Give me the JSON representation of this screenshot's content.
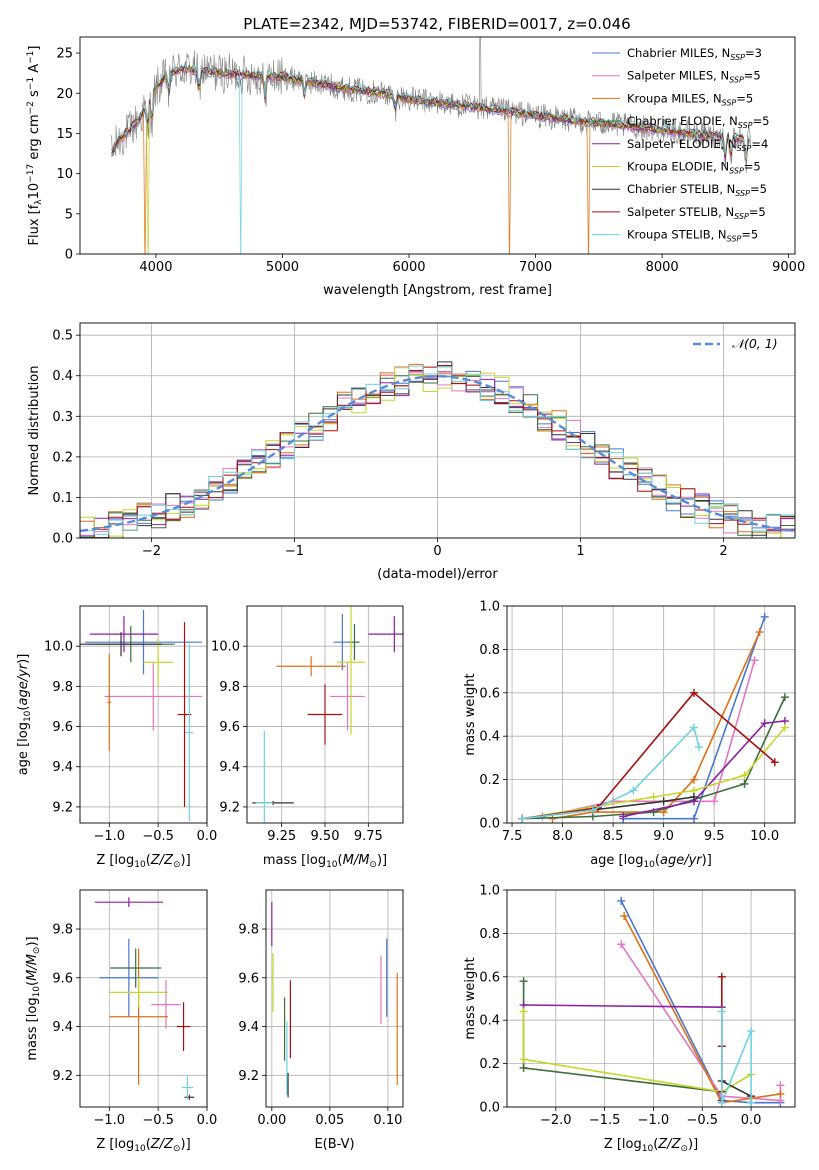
{
  "figure_title": "PLATE=2342, MJD=53742, FIBERID=0017, z=0.046",
  "colors": {
    "Chabrier MILES": "#4878cf",
    "Salpeter MILES": "#e377c2",
    "Kroupa MILES": "#dd7117",
    "Chabrier ELODIE": "#3b6e3b",
    "Salpeter ELODIE": "#8e1fa4",
    "Kroupa ELODIE": "#c7d62a",
    "Chabrier STELIB": "#333333",
    "Salpeter STELIB": "#a50f0f",
    "Kroupa STELIB": "#6fd2de",
    "data": "#7f7f7f"
  },
  "chart_data": [
    {
      "id": "spectrum",
      "type": "line",
      "title": "PLATE=2342, MJD=53742, FIBERID=0017, z=0.046",
      "xlabel": "wavelength [Angstrom, rest frame]",
      "ylabel": "Flux [f_λ 10^-17 erg cm^-2 s^-1 A^-1]",
      "xlim": [
        3400,
        9050
      ],
      "ylim": [
        0,
        27
      ],
      "xticks": [
        4000,
        5000,
        6000,
        7000,
        8000,
        9000
      ],
      "yticks": [
        0,
        5,
        10,
        15,
        20,
        25
      ],
      "legend_position": "top-right",
      "legend": [
        {
          "name": "Chabrier MILES",
          "nssp": "3"
        },
        {
          "name": "Salpeter MILES",
          "nssp": "5"
        },
        {
          "name": "Kroupa MILES",
          "nssp": "5"
        },
        {
          "name": "Chabrier ELODIE",
          "nssp": "5"
        },
        {
          "name": "Salpeter ELODIE",
          "nssp": "4"
        },
        {
          "name": "Kroupa ELODIE",
          "nssp": "5"
        },
        {
          "name": "Chabrier STELIB",
          "nssp": "5"
        },
        {
          "name": "Salpeter STELIB",
          "nssp": "5"
        },
        {
          "name": "Kroupa STELIB",
          "nssp": "5"
        }
      ],
      "data_envelope": {
        "x": [
          3650,
          3700,
          3800,
          3900,
          4000,
          4100,
          4200,
          4400,
          4600,
          4800,
          5000,
          5200,
          5500,
          5800,
          6000,
          6300,
          6600,
          6900,
          7200,
          7500,
          7800,
          8100,
          8400,
          8700
        ],
        "y": [
          12.5,
          14.0,
          15.5,
          17.5,
          20.5,
          22.5,
          23.0,
          22.7,
          22.4,
          22.2,
          22.0,
          21.5,
          20.6,
          20.0,
          19.3,
          18.7,
          18.1,
          17.5,
          16.8,
          16.3,
          15.8,
          15.2,
          14.7,
          14.2
        ]
      }
    },
    {
      "id": "residuals",
      "type": "histogram",
      "xlabel": "(data-model)/error",
      "ylabel": "Normed distribution",
      "xlim": [
        -2.5,
        2.5
      ],
      "ylim": [
        0,
        0.53
      ],
      "xticks": [
        -2,
        -1,
        0,
        1,
        2
      ],
      "yticks": [
        0.0,
        0.1,
        0.2,
        0.3,
        0.4,
        0.5
      ],
      "legend_position": "top-right",
      "legend": [
        "𝒩(0, 1)"
      ],
      "bins": {
        "start": -2.5,
        "width": 0.1,
        "count": 50
      },
      "reference": "standard normal pdf"
    },
    {
      "id": "age-vs-Z",
      "type": "errorbar",
      "xlabel": "Z [log10(Z/Z⊙)]",
      "ylabel": "age  [log10(age/yr)]",
      "xlim": [
        -1.3,
        0.0
      ],
      "ylim": [
        9.12,
        10.2
      ],
      "xticks": [
        -1.0,
        -0.5,
        0.0
      ],
      "yticks": [
        9.2,
        9.4,
        9.6,
        9.8,
        10.0
      ],
      "points": [
        {
          "model": "Chabrier MILES",
          "x": -0.65,
          "xerr": 0.6,
          "y": 10.02,
          "yerr": 0.16
        },
        {
          "model": "Salpeter MILES",
          "x": -0.55,
          "xerr": 0.5,
          "y": 9.75,
          "yerr": 0.17
        },
        {
          "model": "Kroupa MILES",
          "x": -1.0,
          "xerr": 0.02,
          "y": 9.72,
          "yerr": 0.24
        },
        {
          "model": "Chabrier ELODIE",
          "x": -0.78,
          "xerr": 0.45,
          "y": 10.01,
          "yerr": 0.09
        },
        {
          "model": "Salpeter ELODIE",
          "x": -0.85,
          "xerr": 0.35,
          "y": 10.06,
          "yerr": 0.09
        },
        {
          "model": "Kroupa ELODIE",
          "x": -0.5,
          "xerr": 0.15,
          "y": 9.92,
          "yerr": 0.12
        },
        {
          "model": "Chabrier STELIB",
          "x": -0.88,
          "xerr": 0.42,
          "y": 10.01,
          "yerr": 0.06
        },
        {
          "model": "Salpeter STELIB",
          "x": -0.23,
          "xerr": 0.07,
          "y": 9.66,
          "yerr": 0.46
        },
        {
          "model": "Kroupa STELIB",
          "x": -0.18,
          "xerr": 0.04,
          "y": 9.57,
          "yerr": 0.44
        }
      ]
    },
    {
      "id": "age-vs-mass",
      "type": "errorbar",
      "xlabel": "mass [log10(M/M⊙)]",
      "ylabel": "",
      "xlim": [
        9.05,
        9.95
      ],
      "ylim": [
        9.12,
        10.2
      ],
      "xticks": [
        9.25,
        9.5,
        9.75
      ],
      "yticks": [
        9.2,
        9.4,
        9.6,
        9.8,
        10.0
      ],
      "points": [
        {
          "model": "Chabrier MILES",
          "x": 9.6,
          "xerr": 0.05,
          "y": 10.02,
          "yerr": 0.14
        },
        {
          "model": "Salpeter MILES",
          "x": 9.63,
          "xerr": 0.1,
          "y": 9.75,
          "yerr": 0.17
        },
        {
          "model": "Kroupa MILES",
          "x": 9.42,
          "xerr": 0.2,
          "y": 9.9,
          "yerr": 0.05
        },
        {
          "model": "Chabrier ELODIE",
          "x": 9.67,
          "xerr": 0.03,
          "y": 10.02,
          "yerr": 0.09
        },
        {
          "model": "Salpeter ELODIE",
          "x": 9.9,
          "xerr": 0.15,
          "y": 10.06,
          "yerr": 0.09
        },
        {
          "model": "Kroupa ELODIE",
          "x": 9.65,
          "xerr": 0.08,
          "y": 9.92,
          "yerr": 0.36
        },
        {
          "model": "Chabrier STELIB",
          "x": 9.2,
          "xerr": 0.12,
          "y": 9.22,
          "yerr": 0.0
        },
        {
          "model": "Salpeter STELIB",
          "x": 9.5,
          "xerr": 0.1,
          "y": 9.66,
          "yerr": 0.15
        },
        {
          "model": "Kroupa STELIB",
          "x": 9.15,
          "xerr": 0.05,
          "y": 9.22,
          "yerr": 0.36
        }
      ]
    },
    {
      "id": "massweight-vs-age",
      "type": "line",
      "xlabel": "age  [log10(age/yr)]",
      "ylabel": "mass weight",
      "xlim": [
        7.45,
        10.3
      ],
      "ylim": [
        0,
        1.0
      ],
      "xticks": [
        7.5,
        8.0,
        8.5,
        9.0,
        9.5,
        10.0
      ],
      "yticks": [
        0.0,
        0.2,
        0.4,
        0.6,
        0.8,
        1.0
      ],
      "series": [
        {
          "model": "Chabrier MILES",
          "x": [
            8.6,
            9.3,
            10.0
          ],
          "y": [
            0.02,
            0.02,
            0.95
          ]
        },
        {
          "model": "Salpeter MILES",
          "x": [
            7.8,
            8.5,
            9.5,
            9.9
          ],
          "y": [
            0.03,
            0.1,
            0.1,
            0.75
          ]
        },
        {
          "model": "Kroupa MILES",
          "x": [
            7.9,
            8.3,
            9.0,
            9.3,
            9.95
          ],
          "y": [
            0.02,
            0.05,
            0.05,
            0.2,
            0.88
          ]
        },
        {
          "model": "Chabrier ELODIE",
          "x": [
            7.6,
            8.3,
            8.9,
            9.8,
            10.2
          ],
          "y": [
            0.02,
            0.03,
            0.05,
            0.18,
            0.58
          ]
        },
        {
          "model": "Salpeter ELODIE",
          "x": [
            8.6,
            9.3,
            10.0,
            10.2
          ],
          "y": [
            0.03,
            0.1,
            0.46,
            0.47
          ]
        },
        {
          "model": "Kroupa ELODIE",
          "x": [
            7.6,
            8.9,
            9.3,
            9.8,
            10.2
          ],
          "y": [
            0.02,
            0.12,
            0.15,
            0.22,
            0.44
          ]
        },
        {
          "model": "Chabrier STELIB",
          "x": [
            7.6,
            8.3,
            9.0,
            9.3
          ],
          "y": [
            0.02,
            0.06,
            0.1,
            0.12
          ]
        },
        {
          "model": "Salpeter STELIB",
          "x": [
            7.6,
            8.35,
            9.3,
            10.1
          ],
          "y": [
            0.02,
            0.07,
            0.6,
            0.28
          ]
        },
        {
          "model": "Kroupa STELIB",
          "x": [
            7.6,
            8.3,
            8.7,
            9.3,
            9.35
          ],
          "y": [
            0.02,
            0.06,
            0.15,
            0.44,
            0.35
          ]
        }
      ]
    },
    {
      "id": "mass-vs-Z",
      "type": "errorbar",
      "xlabel": "Z [log10(Z/Z⊙)]",
      "ylabel": "mass [log10(M/M⊙)]",
      "xlim": [
        -1.3,
        0.0
      ],
      "ylim": [
        9.07,
        9.96
      ],
      "xticks": [
        -1.0,
        -0.5,
        0.0
      ],
      "yticks": [
        9.2,
        9.4,
        9.6,
        9.8
      ],
      "points": [
        {
          "model": "Chabrier MILES",
          "x": -0.8,
          "xerr": 0.3,
          "y": 9.6,
          "yerr": 0.16
        },
        {
          "model": "Salpeter MILES",
          "x": -0.42,
          "xerr": 0.15,
          "y": 9.49,
          "yerr": 0.1
        },
        {
          "model": "Kroupa MILES",
          "x": -0.7,
          "xerr": 0.3,
          "y": 9.44,
          "yerr": 0.28
        },
        {
          "model": "Chabrier ELODIE",
          "x": -0.73,
          "xerr": 0.26,
          "y": 9.64,
          "yerr": 0.08
        },
        {
          "model": "Salpeter ELODIE",
          "x": -0.8,
          "xerr": 0.35,
          "y": 9.91,
          "yerr": 0.02
        },
        {
          "model": "Kroupa ELODIE",
          "x": -0.7,
          "xerr": 0.3,
          "y": 9.54,
          "yerr": 0.06
        },
        {
          "model": "Chabrier STELIB",
          "x": -0.18,
          "xerr": 0.05,
          "y": 9.11,
          "yerr": 0.0
        },
        {
          "model": "Salpeter STELIB",
          "x": -0.24,
          "xerr": 0.07,
          "y": 9.4,
          "yerr": 0.1
        },
        {
          "model": "Kroupa STELIB",
          "x": -0.2,
          "xerr": 0.06,
          "y": 9.15,
          "yerr": 0.05
        }
      ]
    },
    {
      "id": "mass-vs-ebv",
      "type": "errorbar",
      "xlabel": "E(B-V)",
      "ylabel": "",
      "xlim": [
        -0.005,
        0.113
      ],
      "ylim": [
        9.07,
        9.96
      ],
      "xticks": [
        0.0,
        0.05,
        0.1
      ],
      "yticks": [
        9.2,
        9.4,
        9.6,
        9.8
      ],
      "points": [
        {
          "model": "Chabrier MILES",
          "x": 0.099,
          "y": 9.6,
          "yerr": 0.16
        },
        {
          "model": "Salpeter MILES",
          "x": 0.094,
          "y": 9.55,
          "yerr": 0.14
        },
        {
          "model": "Kroupa MILES",
          "x": 0.108,
          "y": 9.39,
          "yerr": 0.23
        },
        {
          "model": "Chabrier ELODIE",
          "x": 0.011,
          "y": 9.39,
          "yerr": 0.13
        },
        {
          "model": "Salpeter ELODIE",
          "x": 0.0,
          "y": 9.82,
          "yerr": 0.09
        },
        {
          "model": "Kroupa ELODIE",
          "x": 0.001,
          "y": 9.58,
          "yerr": 0.12
        },
        {
          "model": "Chabrier STELIB",
          "x": 0.014,
          "y": 9.16,
          "yerr": 0.05
        },
        {
          "model": "Salpeter STELIB",
          "x": 0.016,
          "y": 9.43,
          "yerr": 0.16
        },
        {
          "model": "Kroupa STELIB",
          "x": 0.013,
          "y": 9.27,
          "yerr": 0.15
        }
      ]
    },
    {
      "id": "massweight-vs-Z",
      "type": "line",
      "xlabel": "Z [log10(Z/Z⊙)]",
      "ylabel": "mass weight",
      "xlim": [
        -2.5,
        0.45
      ],
      "ylim": [
        0,
        1.0
      ],
      "xticks": [
        -2.0,
        -1.5,
        -1.0,
        -0.5,
        0.0
      ],
      "yticks": [
        0.0,
        0.2,
        0.4,
        0.6,
        0.8,
        1.0
      ],
      "series": [
        {
          "model": "Chabrier MILES",
          "x": [
            -1.33,
            -0.3,
            0.0,
            0.3
          ],
          "y": [
            0.95,
            0.03,
            0.02,
            0.02
          ]
        },
        {
          "model": "Salpeter MILES",
          "x": [
            -1.33,
            -0.3,
            0.3,
            0.3
          ],
          "y": [
            0.75,
            0.05,
            0.03,
            0.1
          ]
        },
        {
          "model": "Kroupa MILES",
          "x": [
            -1.3,
            -0.3,
            0.3
          ],
          "y": [
            0.88,
            0.02,
            0.06
          ]
        },
        {
          "model": "Chabrier ELODIE",
          "x": [
            -2.33,
            -2.33,
            -0.3
          ],
          "y": [
            0.58,
            0.18,
            0.07
          ]
        },
        {
          "model": "Salpeter ELODIE",
          "x": [
            -2.33,
            -0.3,
            -0.3
          ],
          "y": [
            0.47,
            0.46,
            0.03
          ]
        },
        {
          "model": "Kroupa ELODIE",
          "x": [
            -2.33,
            -2.33,
            -0.3,
            0.0
          ],
          "y": [
            0.44,
            0.22,
            0.07,
            0.15
          ]
        },
        {
          "model": "Chabrier STELIB",
          "x": [
            -0.3,
            0.0
          ],
          "y": [
            0.12,
            0.05
          ]
        },
        {
          "model": "Salpeter STELIB",
          "x": [
            -0.3,
            -0.3,
            -0.3
          ],
          "y": [
            0.6,
            0.28,
            0.07
          ]
        },
        {
          "model": "Kroupa STELIB",
          "x": [
            -0.3,
            -0.3,
            0.0,
            0.0
          ],
          "y": [
            0.44,
            0.02,
            0.35,
            0.02
          ]
        }
      ]
    }
  ]
}
